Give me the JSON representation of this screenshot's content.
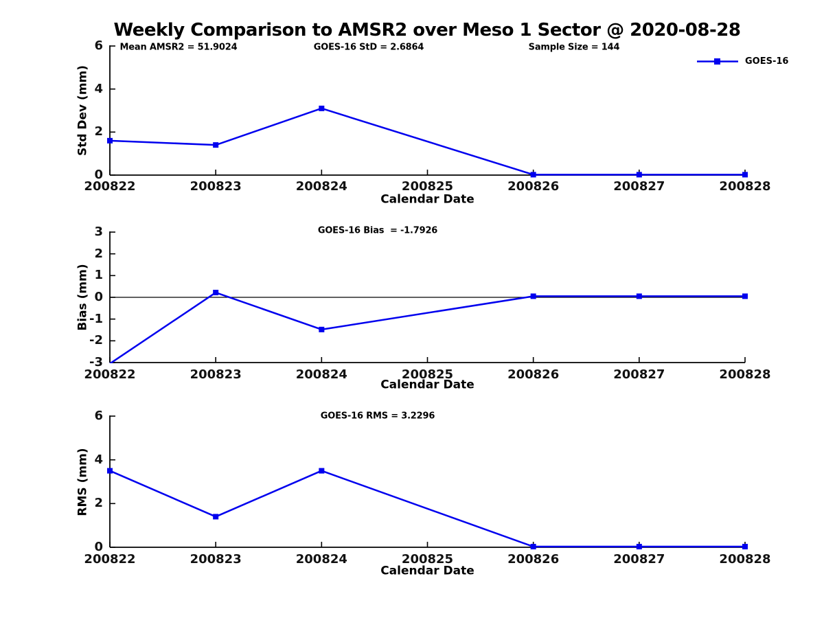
{
  "title": "Weekly Comparison to AMSR2 over Meso 1 Sector @ 2020-08-28",
  "legend": {
    "label": "GOES-16"
  },
  "colors": {
    "series": "#0000EE",
    "axis": "#000000",
    "zero_line": "#000000",
    "background": "#ffffff"
  },
  "chart_data": [
    {
      "type": "line",
      "name": "std-dev",
      "ylabel": "Std Dev (mm)",
      "xlabel": "Calendar Date",
      "ylim": [
        0,
        6
      ],
      "yticks": [
        "0",
        "2",
        "4",
        "6"
      ],
      "ytick_values": [
        0,
        2,
        4,
        6
      ],
      "xticks": [
        "200822",
        "200823",
        "200824",
        "200825",
        "200826",
        "200827",
        "200828"
      ],
      "xtick_values": [
        200822,
        200823,
        200824,
        200825,
        200826,
        200827,
        200828
      ],
      "annotations": [
        "Mean AMSR2 = 51.9024",
        "GOES-16 StD = 2.6864",
        "Sample Size = 144"
      ],
      "legend_entry": "GOES-16",
      "grid": false,
      "series": [
        {
          "name": "GOES-16",
          "marker": "square",
          "x": [
            200822,
            200823,
            200824,
            200826,
            200827,
            200828
          ],
          "values": [
            1.6,
            1.4,
            3.1,
            0.02,
            0.02,
            0.02
          ]
        }
      ]
    },
    {
      "type": "line",
      "name": "bias",
      "ylabel": "Bias (mm)",
      "xlabel": "Calendar Date",
      "ylim": [
        -3,
        3
      ],
      "yticks": [
        "-3",
        "-2",
        "-1",
        "0",
        "1",
        "2",
        "3"
      ],
      "ytick_values": [
        -3,
        -2,
        -1,
        0,
        1,
        2,
        3
      ],
      "xticks": [
        "200822",
        "200823",
        "200824",
        "200825",
        "200826",
        "200827",
        "200828"
      ],
      "xtick_values": [
        200822,
        200823,
        200824,
        200825,
        200826,
        200827,
        200828
      ],
      "annotations": [
        "GOES-16 Bias  = -1.7926"
      ],
      "zero_line": true,
      "grid": false,
      "series": [
        {
          "name": "GOES-16",
          "marker": "square",
          "x": [
            200822,
            200823,
            200824,
            200826,
            200827,
            200828
          ],
          "values": [
            -3.05,
            0.22,
            -1.48,
            0.05,
            0.05,
            0.05
          ]
        }
      ]
    },
    {
      "type": "line",
      "name": "rms",
      "ylabel": "RMS (mm)",
      "xlabel": "Calendar Date",
      "ylim": [
        0,
        6
      ],
      "yticks": [
        "0",
        "2",
        "4",
        "6"
      ],
      "ytick_values": [
        0,
        2,
        4,
        6
      ],
      "xticks": [
        "200822",
        "200823",
        "200824",
        "200825",
        "200826",
        "200827",
        "200828"
      ],
      "xtick_values": [
        200822,
        200823,
        200824,
        200825,
        200826,
        200827,
        200828
      ],
      "annotations": [
        "GOES-16 RMS = 3.2296"
      ],
      "grid": false,
      "series": [
        {
          "name": "GOES-16",
          "marker": "square",
          "x": [
            200822,
            200823,
            200824,
            200826,
            200827,
            200828
          ],
          "values": [
            3.5,
            1.4,
            3.5,
            0.03,
            0.03,
            0.03
          ]
        }
      ]
    }
  ]
}
